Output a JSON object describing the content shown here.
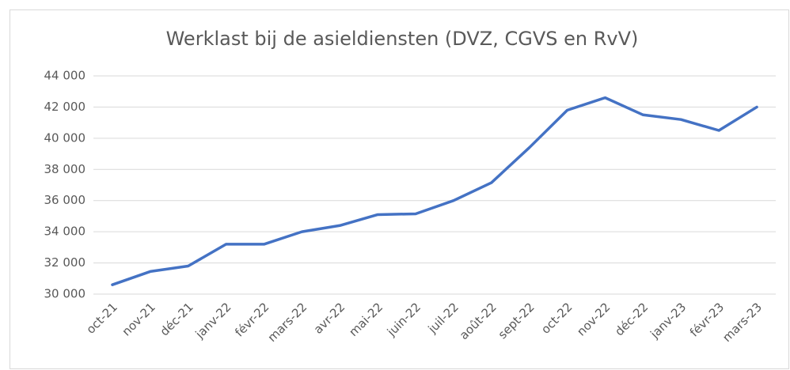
{
  "chart_data": {
    "type": "line",
    "title": "Werklast bij de asieldiensten (DVZ, CGVS en RvV)",
    "categories": [
      "oct-21",
      "nov-21",
      "déc-21",
      "janv-22",
      "févr-22",
      "mars-22",
      "avr-22",
      "mai-22",
      "juin-22",
      "juil-22",
      "août-22",
      "sept-22",
      "oct-22",
      "nov-22",
      "déc-22",
      "janv-23",
      "févr-23",
      "mars-23"
    ],
    "series": [
      {
        "name": "Werklast",
        "color": "#4472c4",
        "values": [
          30600,
          31450,
          31800,
          33200,
          33200,
          34000,
          34400,
          35100,
          35150,
          36000,
          37150,
          39400,
          41800,
          42600,
          41500,
          41200,
          40500,
          42000
        ]
      }
    ],
    "ylim": [
      30000,
      44000
    ],
    "yticks": [
      {
        "value": 30000,
        "label": "30 000"
      },
      {
        "value": 32000,
        "label": "32 000"
      },
      {
        "value": 34000,
        "label": "34 000"
      },
      {
        "value": 36000,
        "label": "36 000"
      },
      {
        "value": 38000,
        "label": "38 000"
      },
      {
        "value": 40000,
        "label": "40 000"
      },
      {
        "value": 42000,
        "label": "42 000"
      },
      {
        "value": 44000,
        "label": "44 000"
      }
    ],
    "grid": true
  }
}
